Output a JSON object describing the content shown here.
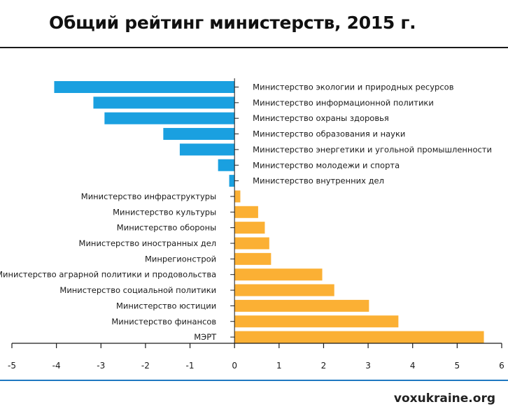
{
  "header": {
    "title": "Общий рейтинг министерств, 2015 г."
  },
  "footer": {
    "source": "voxukraine.org"
  },
  "colors": {
    "negative": "#1aa0e0",
    "positive": "#fbb034",
    "axis": "#1a1a1a",
    "bottom_rule": "#1f78c1"
  },
  "chart_data": {
    "type": "bar",
    "orientation": "horizontal",
    "title": "Общий рейтинг министерств, 2015 г.",
    "xlabel": "",
    "ylabel": "",
    "xlim": [
      -5,
      6
    ],
    "xticks": [
      -5,
      -4,
      -3,
      -2,
      -1,
      0,
      1,
      2,
      3,
      4,
      5,
      6
    ],
    "grid": false,
    "legend": "none",
    "categories": [
      "Министерство экологии и природных ресурсов",
      "Министерство информационной политики",
      "Министерство охраны здоровья",
      "Министерство образования и науки",
      "Министерство энергетики и угольной промышленности",
      "Министерство молодежи и спорта",
      "Министерство внутренних дел",
      "Министерство инфраструктуры",
      "Министерство культуры",
      "Министерство обороны",
      "Министерство иностранных дел",
      "Минрегионстрой",
      "Министерство аграрной политики и продовольства",
      "Министерство социальной политики",
      "Министерство юстиции",
      "Министерство финансов",
      "МЭРТ"
    ],
    "values": [
      -4.05,
      -3.17,
      -2.92,
      -1.6,
      -1.23,
      -0.37,
      -0.12,
      0.13,
      0.53,
      0.68,
      0.78,
      0.82,
      1.97,
      2.24,
      3.02,
      3.68,
      5.6
    ]
  }
}
